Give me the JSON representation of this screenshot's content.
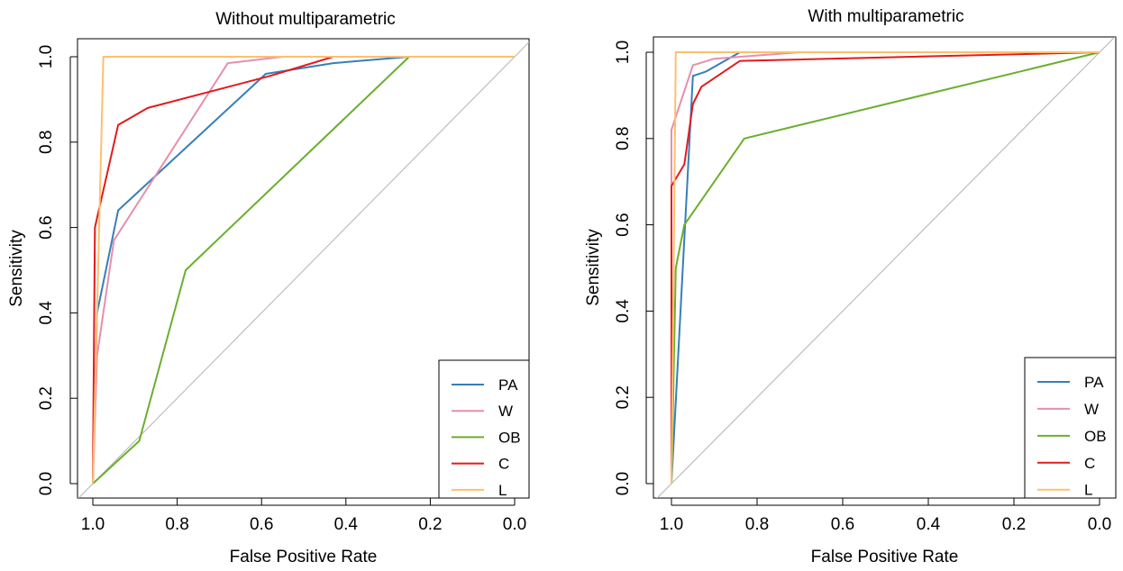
{
  "chart_data": [
    {
      "type": "line",
      "title": "Without multiparametric",
      "xlabel": "False Positive Rate",
      "ylabel": "Sensitivity",
      "xlim": [
        1.0,
        0.0
      ],
      "ylim": [
        0.0,
        1.0
      ],
      "x_ticks": [
        "1.0",
        "0.8",
        "0.6",
        "0.4",
        "0.2",
        "0.0"
      ],
      "y_ticks": [
        "0.0",
        "0.2",
        "0.4",
        "0.6",
        "0.8",
        "1.0"
      ],
      "grid": false,
      "legend_position": "bottom-right",
      "reference_line": true,
      "series": [
        {
          "name": "PA",
          "color": "#377EB8",
          "x": [
            1.0,
            0.99,
            0.94,
            0.59,
            0.43,
            0.25,
            0.0
          ],
          "y": [
            0.0,
            0.4,
            0.64,
            0.96,
            0.985,
            1.0,
            1.0
          ]
        },
        {
          "name": "W",
          "color": "#E68FAC",
          "x": [
            1.0,
            0.99,
            0.95,
            0.68,
            0.55,
            0.0
          ],
          "y": [
            0.0,
            0.3,
            0.57,
            0.985,
            1.0,
            1.0
          ]
        },
        {
          "name": "OB",
          "color": "#6AAF2E",
          "x": [
            1.0,
            0.89,
            0.78,
            0.25,
            0.17,
            0.0
          ],
          "y": [
            0.0,
            0.1,
            0.5,
            1.0,
            1.0,
            1.0
          ]
        },
        {
          "name": "C",
          "color": "#E41A1C",
          "x": [
            1.0,
            0.995,
            0.94,
            0.87,
            0.58,
            0.43,
            0.0
          ],
          "y": [
            0.0,
            0.6,
            0.84,
            0.88,
            0.955,
            1.0,
            1.0
          ]
        },
        {
          "name": "L",
          "color": "#FDBF6F",
          "x": [
            1.0,
            0.975,
            0.0
          ],
          "y": [
            0.0,
            1.0,
            1.0
          ]
        }
      ]
    },
    {
      "type": "line",
      "title": "With multiparametric",
      "xlabel": "False Positive Rate",
      "ylabel": "Sensitivity",
      "xlim": [
        1.0,
        0.0
      ],
      "ylim": [
        0.0,
        1.0
      ],
      "x_ticks": [
        "1.0",
        "0.8",
        "0.6",
        "0.4",
        "0.2",
        "0.0"
      ],
      "y_ticks": [
        "0.0",
        "0.2",
        "0.4",
        "0.6",
        "0.8",
        "1.0"
      ],
      "grid": false,
      "legend_position": "bottom-right",
      "reference_line": true,
      "series": [
        {
          "name": "PA",
          "color": "#377EB8",
          "x": [
            1.0,
            0.95,
            0.92,
            0.84,
            0.0
          ],
          "y": [
            0.0,
            0.945,
            0.955,
            1.0,
            1.0
          ]
        },
        {
          "name": "W",
          "color": "#E68FAC",
          "x": [
            1.0,
            1.0,
            0.95,
            0.9,
            0.7,
            0.0
          ],
          "y": [
            0.0,
            0.82,
            0.97,
            0.985,
            1.0,
            1.0
          ]
        },
        {
          "name": "OB",
          "color": "#6AAF2E",
          "x": [
            1.0,
            0.99,
            0.97,
            0.83,
            0.0
          ],
          "y": [
            0.0,
            0.5,
            0.6,
            0.8,
            1.0
          ]
        },
        {
          "name": "C",
          "color": "#E41A1C",
          "x": [
            1.0,
            1.0,
            0.97,
            0.95,
            0.93,
            0.84,
            0.0
          ],
          "y": [
            0.0,
            0.69,
            0.74,
            0.88,
            0.92,
            0.98,
            1.0
          ]
        },
        {
          "name": "L",
          "color": "#FDBF6F",
          "x": [
            1.0,
            0.99,
            0.0
          ],
          "y": [
            0.0,
            1.0,
            1.0
          ]
        }
      ]
    }
  ]
}
